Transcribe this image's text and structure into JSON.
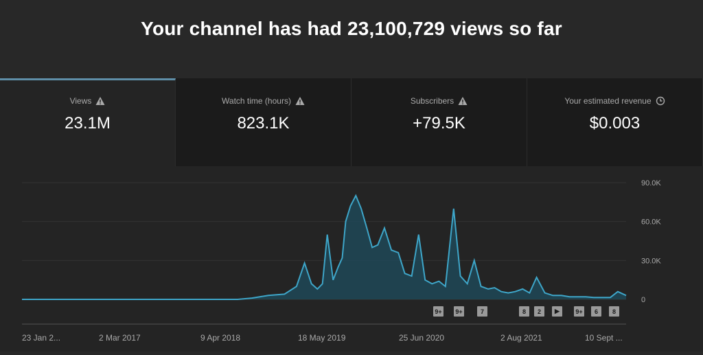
{
  "headline": "Your channel has had 23,100,729 views so far",
  "cards": [
    {
      "label": "Views",
      "value": "23.1M",
      "icon": "warning-icon"
    },
    {
      "label": "Watch time (hours)",
      "value": "823.1K",
      "icon": "warning-icon"
    },
    {
      "label": "Subscribers",
      "value": "+79.5K",
      "icon": "warning-icon"
    },
    {
      "label": "Your estimated revenue",
      "value": "$0.003",
      "icon": "clock-icon"
    }
  ],
  "annotations": [
    "9+",
    "9+",
    "7",
    "8",
    "2",
    "▶",
    "9+",
    "6",
    "8"
  ],
  "colors": {
    "line": "#3ea6c9",
    "fill": "#1e4a5a",
    "accent": "#5f8fa8"
  },
  "chart_data": {
    "type": "area",
    "ylim": [
      0,
      90000
    ],
    "yticks": [
      "90.0K",
      "60.0K",
      "30.0K",
      "0"
    ],
    "xticks": [
      "23 Jan 2...",
      "2 Mar 2017",
      "9 Apr 2018",
      "18 May 2019",
      "25 Jun 2020",
      "2 Aug 2021",
      "10 Sept ..."
    ],
    "x": [
      "2016-01-23",
      "2016-06-01",
      "2017-01-01",
      "2017-06-01",
      "2018-01-01",
      "2018-04-09",
      "2018-06-01",
      "2018-08-01",
      "2018-10-01",
      "2018-11-15",
      "2018-12-15",
      "2019-01-10",
      "2019-02-01",
      "2019-02-20",
      "2019-03-10",
      "2019-04-01",
      "2019-04-20",
      "2019-05-05",
      "2019-05-18",
      "2019-06-05",
      "2019-06-25",
      "2019-07-15",
      "2019-08-05",
      "2019-08-25",
      "2019-09-15",
      "2019-10-10",
      "2019-11-05",
      "2019-12-01",
      "2019-12-25",
      "2020-01-20",
      "2020-02-15",
      "2020-03-10",
      "2020-04-05",
      "2020-05-01",
      "2020-05-25",
      "2020-06-25",
      "2020-07-20",
      "2020-08-15",
      "2020-09-10",
      "2020-10-05",
      "2020-11-01",
      "2020-11-25",
      "2020-12-20",
      "2021-01-15",
      "2021-02-10",
      "2021-03-10",
      "2021-04-05",
      "2021-05-01",
      "2021-06-01",
      "2021-07-01",
      "2021-08-02",
      "2021-09-01",
      "2021-10-01",
      "2021-11-01",
      "2021-12-01",
      "2022-01-01",
      "2022-02-01",
      "2022-03-01",
      "2022-04-01"
    ],
    "y": [
      0,
      0,
      0,
      0,
      0,
      0,
      1000,
      3000,
      4000,
      10000,
      28000,
      12000,
      8000,
      12000,
      50000,
      15000,
      25000,
      32000,
      60000,
      72000,
      80000,
      70000,
      55000,
      40000,
      42000,
      55000,
      38000,
      36000,
      20000,
      18000,
      50000,
      15000,
      12000,
      14000,
      10000,
      70000,
      18000,
      12000,
      30000,
      10000,
      8000,
      9000,
      6000,
      5000,
      6000,
      8000,
      5000,
      17000,
      5000,
      3000,
      3000,
      2000,
      2000,
      2000,
      1500,
      1500,
      1500,
      6000,
      3000
    ]
  }
}
